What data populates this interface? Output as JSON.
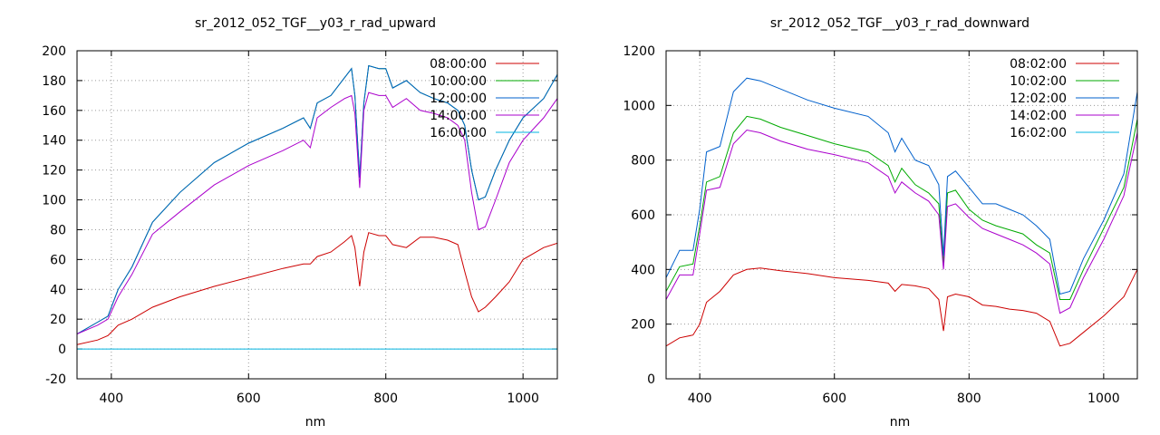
{
  "chart_data": [
    {
      "type": "line",
      "title": "sr_2012_052_TGF__y03_r_rad_upward",
      "xlabel": "nm",
      "ylabel": "",
      "xlim": [
        350,
        1050
      ],
      "ylim": [
        -20,
        200
      ],
      "xticks": [
        400,
        600,
        800,
        1000
      ],
      "yticks": [
        -20,
        0,
        20,
        40,
        60,
        80,
        100,
        120,
        140,
        160,
        180,
        200
      ],
      "grid": true,
      "legend_position": "top-right",
      "series": [
        {
          "name": "08:00:00",
          "color": "#cc0000",
          "x": [
            350,
            380,
            395,
            410,
            430,
            460,
            500,
            550,
            600,
            650,
            680,
            690,
            700,
            720,
            740,
            750,
            755,
            762,
            768,
            775,
            790,
            800,
            810,
            830,
            850,
            870,
            890,
            905,
            915,
            925,
            935,
            945,
            960,
            980,
            1000,
            1030,
            1050
          ],
          "y": [
            3,
            6,
            9,
            16,
            20,
            28,
            35,
            42,
            48,
            54,
            57,
            57,
            62,
            65,
            72,
            76,
            68,
            42,
            65,
            78,
            76,
            76,
            70,
            68,
            75,
            75,
            73,
            70,
            52,
            35,
            25,
            28,
            35,
            45,
            60,
            68,
            71
          ]
        },
        {
          "name": "10:00:00",
          "color": "#00aa00",
          "x": [
            350,
            380,
            395,
            410,
            430,
            460,
            500,
            550,
            600,
            650,
            680,
            690,
            700,
            720,
            740,
            750,
            755,
            762,
            768,
            775,
            790,
            800,
            810,
            830,
            850,
            870,
            890,
            905,
            915,
            925,
            935,
            945,
            960,
            980,
            1000,
            1030,
            1050
          ],
          "y": [
            10,
            18,
            22,
            40,
            55,
            85,
            105,
            125,
            138,
            148,
            155,
            148,
            165,
            170,
            182,
            188,
            170,
            115,
            165,
            190,
            188,
            188,
            175,
            180,
            172,
            168,
            165,
            160,
            150,
            120,
            100,
            102,
            120,
            140,
            155,
            168,
            184
          ]
        },
        {
          "name": "12:00:00",
          "color": "#0060cc",
          "x": [
            350,
            380,
            395,
            410,
            430,
            460,
            500,
            550,
            600,
            650,
            680,
            690,
            700,
            720,
            740,
            750,
            755,
            762,
            768,
            775,
            790,
            800,
            810,
            830,
            850,
            870,
            890,
            905,
            915,
            925,
            935,
            945,
            960,
            980,
            1000,
            1030,
            1050
          ],
          "y": [
            10,
            18,
            22,
            40,
            55,
            85,
            105,
            125,
            138,
            148,
            155,
            148,
            165,
            170,
            182,
            188,
            170,
            115,
            165,
            190,
            188,
            188,
            175,
            180,
            172,
            168,
            165,
            160,
            150,
            120,
            100,
            102,
            120,
            140,
            155,
            168,
            184
          ]
        },
        {
          "name": "14:00:00",
          "color": "#aa00cc",
          "x": [
            350,
            380,
            395,
            410,
            430,
            460,
            500,
            550,
            600,
            650,
            680,
            690,
            700,
            720,
            740,
            750,
            755,
            762,
            768,
            775,
            790,
            800,
            810,
            830,
            850,
            870,
            890,
            905,
            915,
            925,
            935,
            945,
            960,
            980,
            1000,
            1030,
            1050
          ],
          "y": [
            10,
            16,
            20,
            35,
            50,
            77,
            92,
            110,
            123,
            133,
            140,
            135,
            155,
            162,
            168,
            170,
            158,
            108,
            160,
            172,
            170,
            170,
            162,
            168,
            160,
            158,
            155,
            150,
            140,
            105,
            80,
            82,
            100,
            125,
            140,
            155,
            168
          ]
        },
        {
          "name": "16:00:00",
          "color": "#00b4e0",
          "x": [
            350,
            1050
          ],
          "y": [
            0,
            0
          ]
        }
      ]
    },
    {
      "type": "line",
      "title": "sr_2012_052_TGF__y03_r_rad_downward",
      "xlabel": "nm",
      "ylabel": "",
      "xlim": [
        350,
        1050
      ],
      "ylim": [
        0,
        1200
      ],
      "xticks": [
        400,
        600,
        800,
        1000
      ],
      "yticks": [
        0,
        200,
        400,
        600,
        800,
        1000,
        1200
      ],
      "grid": true,
      "legend_position": "top-right",
      "series": [
        {
          "name": "08:02:00",
          "color": "#cc0000",
          "x": [
            350,
            370,
            390,
            400,
            410,
            430,
            450,
            470,
            490,
            520,
            560,
            600,
            650,
            680,
            690,
            700,
            720,
            740,
            755,
            762,
            768,
            780,
            800,
            820,
            840,
            860,
            880,
            900,
            920,
            935,
            950,
            970,
            1000,
            1030,
            1050
          ],
          "y": [
            120,
            150,
            160,
            200,
            280,
            320,
            380,
            400,
            405,
            395,
            385,
            370,
            360,
            350,
            320,
            345,
            340,
            330,
            290,
            175,
            300,
            310,
            300,
            270,
            265,
            255,
            250,
            240,
            210,
            120,
            130,
            170,
            230,
            300,
            400
          ]
        },
        {
          "name": "10:02:00",
          "color": "#00aa00",
          "x": [
            350,
            370,
            390,
            400,
            410,
            430,
            450,
            470,
            490,
            520,
            560,
            600,
            650,
            680,
            690,
            700,
            720,
            740,
            755,
            762,
            768,
            780,
            800,
            820,
            840,
            860,
            880,
            900,
            920,
            935,
            950,
            970,
            1000,
            1030,
            1050
          ],
          "y": [
            320,
            410,
            420,
            560,
            720,
            740,
            900,
            960,
            950,
            920,
            890,
            860,
            830,
            780,
            720,
            770,
            710,
            680,
            640,
            420,
            680,
            690,
            620,
            580,
            560,
            545,
            530,
            490,
            460,
            290,
            290,
            400,
            550,
            700,
            950
          ]
        },
        {
          "name": "12:02:00",
          "color": "#0060cc",
          "x": [
            350,
            370,
            390,
            400,
            410,
            430,
            450,
            470,
            490,
            520,
            560,
            600,
            650,
            680,
            690,
            700,
            720,
            740,
            755,
            762,
            768,
            780,
            800,
            820,
            840,
            860,
            880,
            900,
            920,
            935,
            950,
            970,
            1000,
            1030,
            1050
          ],
          "y": [
            370,
            470,
            470,
            620,
            830,
            850,
            1050,
            1100,
            1090,
            1060,
            1020,
            990,
            960,
            900,
            830,
            880,
            800,
            780,
            710,
            450,
            740,
            760,
            700,
            640,
            640,
            620,
            600,
            560,
            510,
            310,
            320,
            440,
            580,
            750,
            1050
          ]
        },
        {
          "name": "14:02:00",
          "color": "#aa00cc",
          "x": [
            350,
            370,
            390,
            400,
            410,
            430,
            450,
            470,
            490,
            520,
            560,
            600,
            650,
            680,
            690,
            700,
            720,
            740,
            755,
            762,
            768,
            780,
            800,
            820,
            840,
            860,
            880,
            900,
            920,
            935,
            950,
            970,
            1000,
            1030,
            1050
          ],
          "y": [
            290,
            380,
            380,
            530,
            690,
            700,
            860,
            910,
            900,
            870,
            840,
            820,
            790,
            740,
            680,
            720,
            680,
            650,
            600,
            400,
            630,
            640,
            590,
            550,
            530,
            510,
            490,
            460,
            420,
            240,
            260,
            370,
            510,
            670,
            900
          ]
        },
        {
          "name": "16:02:00",
          "color": "#00b4e0",
          "x": [],
          "y": []
        }
      ]
    }
  ]
}
